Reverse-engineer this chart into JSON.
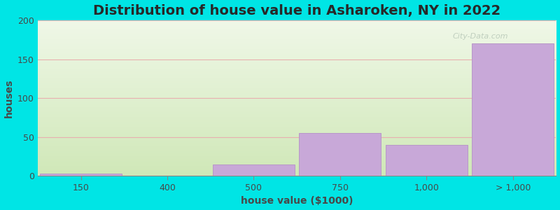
{
  "title": "Distribution of house value in Asharoken, NY in 2022",
  "xlabel": "house value ($1000)",
  "ylabel": "houses",
  "bar_labels": [
    "150",
    "400",
    "500",
    "750",
    "1,000",
    "> 1,000"
  ],
  "bar_values": [
    3,
    0,
    15,
    55,
    40,
    170
  ],
  "bar_color": "#c8a8d8",
  "bar_edge_color": "#b898c8",
  "ylim": [
    0,
    200
  ],
  "yticks": [
    0,
    50,
    100,
    150,
    200
  ],
  "background_outer": "#00e5e5",
  "bg_top_color": "#d0e8b8",
  "bg_bottom_color": "#f0f8e8",
  "grid_color": "#e8b0b0",
  "title_color": "#282828",
  "label_color": "#484848",
  "tick_color": "#484848",
  "watermark_text": "City-Data.com",
  "watermark_color": "#b8c8b8",
  "title_fontsize": 14,
  "label_fontsize": 10,
  "tick_fontsize": 9
}
